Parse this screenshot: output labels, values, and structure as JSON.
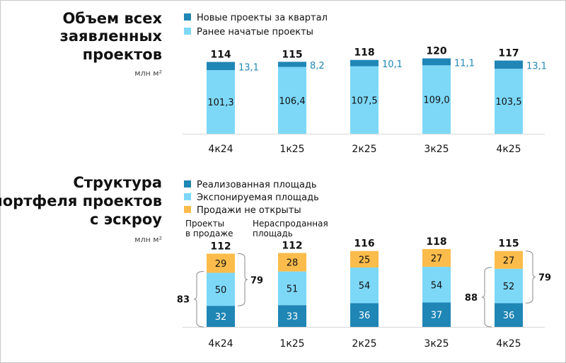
{
  "colors": {
    "new": "#1f86b5",
    "earlier": "#7dd8f8",
    "sold": "#1f86b5",
    "exposed": "#7dd8f8",
    "closed": "#fbbc4b",
    "side_label": "#1f86b5"
  },
  "chart_data": [
    {
      "type": "bar",
      "stacked": true,
      "title": "Объем всех заявленных проектов",
      "unit": "млн м²",
      "categories": [
        "4к24",
        "1к25",
        "2к25",
        "3к25",
        "4к25"
      ],
      "series": [
        {
          "name": "Ранее начатые проекты",
          "values": [
            101.3,
            106.4,
            107.5,
            109.0,
            103.5
          ],
          "labels": [
            "101,3",
            "106,4",
            "107,5",
            "109,0",
            "103,5"
          ]
        },
        {
          "name": "Новые проекты за квартал",
          "values": [
            13.1,
            8.2,
            10.1,
            11.1,
            13.1
          ],
          "labels": [
            "13,1",
            "8,2",
            "10,1",
            "11,1",
            "13,1"
          ]
        }
      ],
      "totals": [
        114,
        115,
        118,
        120,
        117
      ],
      "legend": [
        "Новые проекты за квартал",
        "Ранее начатые проекты"
      ],
      "legend_position": "top-left"
    },
    {
      "type": "bar",
      "stacked": true,
      "title": "Структура портфеля проектов с эскроу",
      "unit": "млн м²",
      "categories": [
        "4к24",
        "1к25",
        "2к25",
        "3к25",
        "4к25"
      ],
      "series": [
        {
          "name": "Реализованная площадь",
          "values": [
            32,
            33,
            36,
            37,
            36
          ]
        },
        {
          "name": "Экспонируемая площадь",
          "values": [
            50,
            51,
            54,
            54,
            52
          ]
        },
        {
          "name": "Продажи не открыты",
          "values": [
            29,
            28,
            25,
            27,
            27
          ]
        }
      ],
      "totals": [
        112,
        112,
        116,
        118,
        115
      ],
      "legend": [
        "Реализованная площадь",
        "Экспонируемая площадь",
        "Продажи не открыты"
      ],
      "legend_position": "top-left",
      "annotations": {
        "projects_on_sale": "Проекты в продаже",
        "unsold_area": "Нераспроданная площадь"
      },
      "brackets": [
        {
          "category": "4к24",
          "left": "83",
          "right": "79"
        },
        {
          "category": "4к25",
          "left": "88",
          "right": "79"
        }
      ]
    }
  ]
}
